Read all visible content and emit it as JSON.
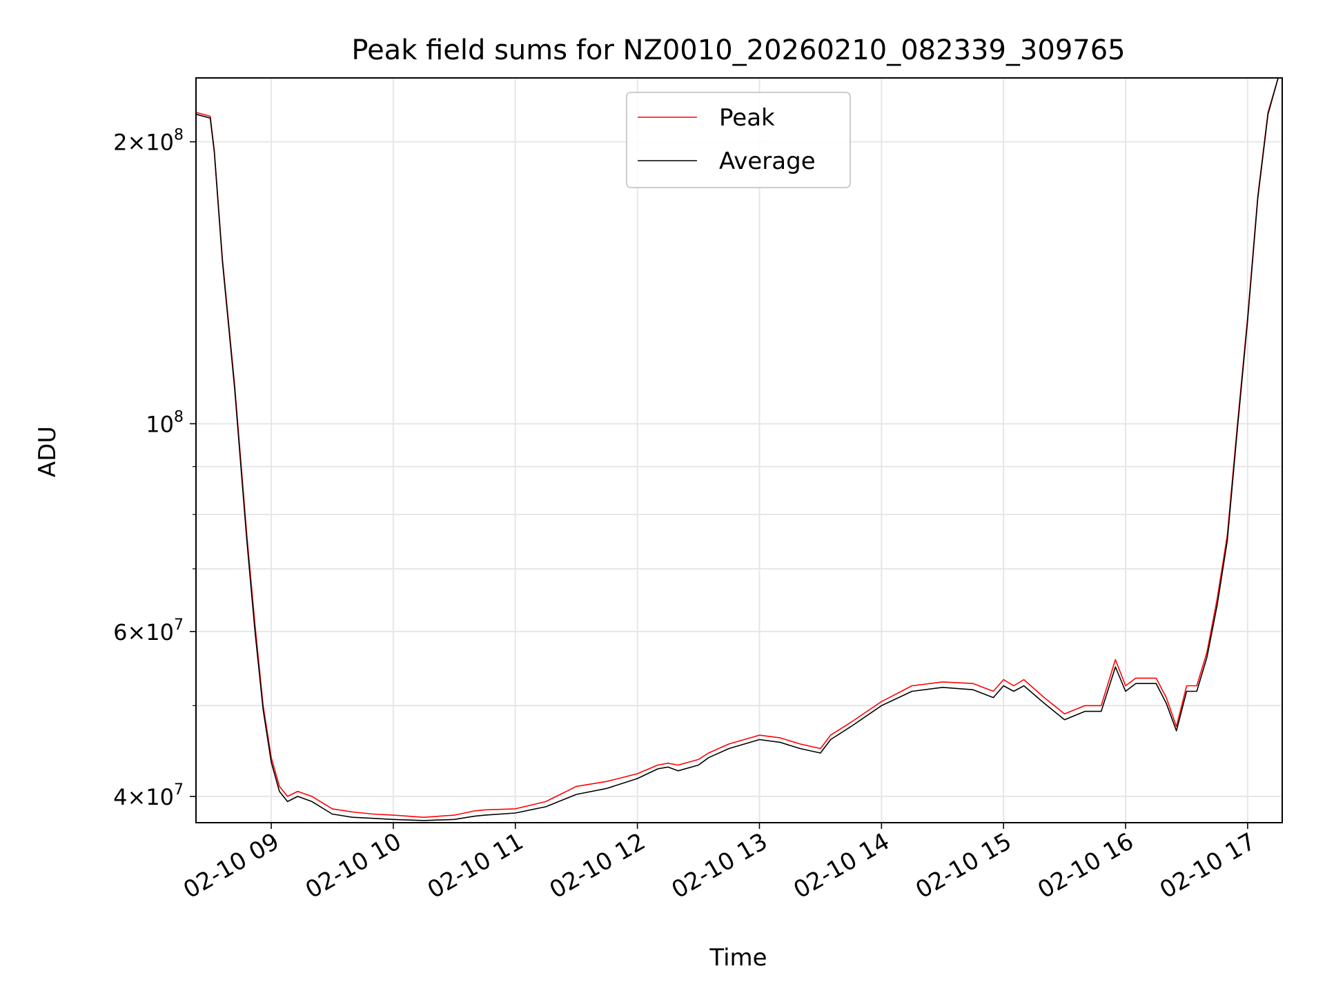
{
  "chart_data": {
    "type": "line",
    "title": "Peak field sums for NZ0010_20260210_082339_309765",
    "xlabel": "Time",
    "ylabel": "ADU",
    "y_scale": "log",
    "grid": true,
    "legend_position": "upper center",
    "xlim": [
      "2026-02-10 08:23",
      "2026-02-10 17:17"
    ],
    "ylim": [
      37500000,
      234000000
    ],
    "x_ticks": [
      "2026-02-10 09:00",
      "2026-02-10 10:00",
      "2026-02-10 11:00",
      "2026-02-10 12:00",
      "2026-02-10 13:00",
      "2026-02-10 14:00",
      "2026-02-10 15:00",
      "2026-02-10 16:00",
      "2026-02-10 17:00"
    ],
    "x_tick_labels": [
      "02-10 09",
      "02-10 10",
      "02-10 11",
      "02-10 12",
      "02-10 13",
      "02-10 14",
      "02-10 15",
      "02-10 16",
      "02-10 17"
    ],
    "y_ticks": [
      {
        "value": 40000000,
        "mantissa": "4",
        "exponent": "7"
      },
      {
        "value": 60000000,
        "mantissa": "6",
        "exponent": "7"
      },
      {
        "value": 100000000,
        "mantissa": "",
        "exponent": "8"
      },
      {
        "value": 200000000,
        "mantissa": "2",
        "exponent": "8"
      }
    ],
    "y_minor_ticks": [
      50000000,
      70000000,
      80000000,
      90000000
    ],
    "series": [
      {
        "name": "Peak",
        "color": "#ff0000",
        "x": [
          "2026-02-10 08:23",
          "2026-02-10 08:30",
          "2026-02-10 08:32",
          "2026-02-10 08:36",
          "2026-02-10 08:42",
          "2026-02-10 08:48",
          "2026-02-10 08:52",
          "2026-02-10 08:56",
          "2026-02-10 09:00",
          "2026-02-10 09:04",
          "2026-02-10 09:08",
          "2026-02-10 09:13",
          "2026-02-10 09:20",
          "2026-02-10 09:30",
          "2026-02-10 09:40",
          "2026-02-10 09:50",
          "2026-02-10 10:00",
          "2026-02-10 10:15",
          "2026-02-10 10:30",
          "2026-02-10 10:40",
          "2026-02-10 10:45",
          "2026-02-10 11:00",
          "2026-02-10 11:15",
          "2026-02-10 11:30",
          "2026-02-10 11:45",
          "2026-02-10 12:00",
          "2026-02-10 12:10",
          "2026-02-10 12:15",
          "2026-02-10 12:20",
          "2026-02-10 12:30",
          "2026-02-10 12:35",
          "2026-02-10 12:45",
          "2026-02-10 13:00",
          "2026-02-10 13:10",
          "2026-02-10 13:20",
          "2026-02-10 13:30",
          "2026-02-10 13:35",
          "2026-02-10 13:45",
          "2026-02-10 14:00",
          "2026-02-10 14:15",
          "2026-02-10 14:30",
          "2026-02-10 14:45",
          "2026-02-10 14:55",
          "2026-02-10 15:00",
          "2026-02-10 15:05",
          "2026-02-10 15:10",
          "2026-02-10 15:20",
          "2026-02-10 15:30",
          "2026-02-10 15:40",
          "2026-02-10 15:48",
          "2026-02-10 15:55",
          "2026-02-10 16:00",
          "2026-02-10 16:05",
          "2026-02-10 16:15",
          "2026-02-10 16:20",
          "2026-02-10 16:25",
          "2026-02-10 16:30",
          "2026-02-10 16:35",
          "2026-02-10 16:40",
          "2026-02-10 16:45",
          "2026-02-10 16:50",
          "2026-02-10 16:55",
          "2026-02-10 17:00",
          "2026-02-10 17:05",
          "2026-02-10 17:10",
          "2026-02-10 17:15"
        ],
        "values": [
          215000000,
          213000000,
          196000000,
          150000000,
          110000000,
          76000000,
          61000000,
          50000000,
          44000000,
          41000000,
          40000000,
          40500000,
          40000000,
          38800000,
          38500000,
          38300000,
          38200000,
          38000000,
          38200000,
          38600000,
          38700000,
          38800000,
          39500000,
          41000000,
          41500000,
          42300000,
          43200000,
          43400000,
          43200000,
          43800000,
          44500000,
          45500000,
          46500000,
          46200000,
          45500000,
          45000000,
          46500000,
          48000000,
          50500000,
          52500000,
          53000000,
          52800000,
          51800000,
          53300000,
          52500000,
          53300000,
          51000000,
          49000000,
          50000000,
          50000000,
          56000000,
          52500000,
          53500000,
          53500000,
          51000000,
          47500000,
          52500000,
          52500000,
          57000000,
          65000000,
          76000000,
          100000000,
          130000000,
          175000000,
          215000000,
          234000000
        ]
      },
      {
        "name": "Average",
        "color": "#000000",
        "x": [
          "2026-02-10 08:23",
          "2026-02-10 08:30",
          "2026-02-10 08:32",
          "2026-02-10 08:36",
          "2026-02-10 08:42",
          "2026-02-10 08:48",
          "2026-02-10 08:52",
          "2026-02-10 08:56",
          "2026-02-10 09:00",
          "2026-02-10 09:04",
          "2026-02-10 09:08",
          "2026-02-10 09:13",
          "2026-02-10 09:20",
          "2026-02-10 09:30",
          "2026-02-10 09:40",
          "2026-02-10 09:50",
          "2026-02-10 10:00",
          "2026-02-10 10:15",
          "2026-02-10 10:30",
          "2026-02-10 10:40",
          "2026-02-10 10:45",
          "2026-02-10 11:00",
          "2026-02-10 11:15",
          "2026-02-10 11:30",
          "2026-02-10 11:45",
          "2026-02-10 12:00",
          "2026-02-10 12:10",
          "2026-02-10 12:15",
          "2026-02-10 12:20",
          "2026-02-10 12:30",
          "2026-02-10 12:35",
          "2026-02-10 12:45",
          "2026-02-10 13:00",
          "2026-02-10 13:10",
          "2026-02-10 13:20",
          "2026-02-10 13:30",
          "2026-02-10 13:35",
          "2026-02-10 13:45",
          "2026-02-10 14:00",
          "2026-02-10 14:15",
          "2026-02-10 14:30",
          "2026-02-10 14:45",
          "2026-02-10 14:55",
          "2026-02-10 15:00",
          "2026-02-10 15:05",
          "2026-02-10 15:10",
          "2026-02-10 15:20",
          "2026-02-10 15:30",
          "2026-02-10 15:40",
          "2026-02-10 15:48",
          "2026-02-10 15:55",
          "2026-02-10 16:00",
          "2026-02-10 16:05",
          "2026-02-10 16:15",
          "2026-02-10 16:20",
          "2026-02-10 16:25",
          "2026-02-10 16:30",
          "2026-02-10 16:35",
          "2026-02-10 16:40",
          "2026-02-10 16:45",
          "2026-02-10 16:50",
          "2026-02-10 16:55",
          "2026-02-10 17:00",
          "2026-02-10 17:05",
          "2026-02-10 17:10",
          "2026-02-10 17:15"
        ],
        "values": [
          214000000,
          212000000,
          195000000,
          149000000,
          109000000,
          75000000,
          60000000,
          49500000,
          43500000,
          40500000,
          39500000,
          40000000,
          39500000,
          38300000,
          38000000,
          37900000,
          37800000,
          37700000,
          37800000,
          38100000,
          38200000,
          38400000,
          39000000,
          40200000,
          40800000,
          41800000,
          42800000,
          43000000,
          42600000,
          43200000,
          44000000,
          45000000,
          46000000,
          45700000,
          45000000,
          44500000,
          46000000,
          47500000,
          50000000,
          51800000,
          52300000,
          52000000,
          51000000,
          52500000,
          51800000,
          52500000,
          50300000,
          48300000,
          49300000,
          49300000,
          55000000,
          51800000,
          52800000,
          52800000,
          50300000,
          47000000,
          51800000,
          51800000,
          56300000,
          64000000,
          75000000,
          99000000,
          129000000,
          174000000,
          214000000,
          234000000
        ]
      }
    ]
  }
}
